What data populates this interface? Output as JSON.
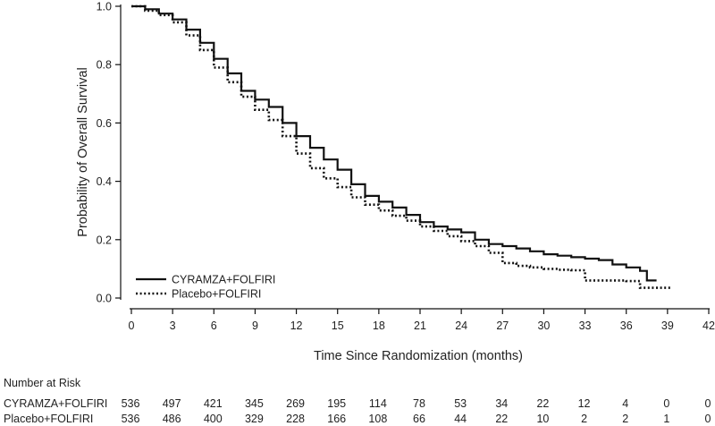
{
  "chart_data": {
    "type": "line",
    "title": "",
    "xlabel": "Time Since Randomization (months)",
    "ylabel": "Probability of Overall Survival",
    "xlim": [
      0,
      42
    ],
    "ylim": [
      0,
      1
    ],
    "xticks": [
      0,
      3,
      6,
      9,
      12,
      15,
      18,
      21,
      24,
      27,
      30,
      33,
      36,
      39,
      42
    ],
    "yticks": [
      0.0,
      0.2,
      0.4,
      0.6,
      0.8,
      1.0
    ],
    "ytick_labels": [
      "0.0",
      "0.2",
      "0.4",
      "0.6",
      "0.8",
      "1.0"
    ],
    "grid": false,
    "legend": {
      "position": "bottom-left"
    },
    "series": [
      {
        "name": "CYRAMZA+FOLFIRI",
        "line_style": "solid",
        "color": "#111111",
        "x": [
          0,
          1,
          2,
          3,
          4,
          5,
          6,
          7,
          8,
          9,
          10,
          11,
          12,
          13,
          14,
          15,
          16,
          17,
          18,
          19,
          20,
          21,
          22,
          23,
          24,
          25,
          26,
          27,
          28,
          29,
          30,
          31,
          32,
          33,
          34,
          35,
          36,
          37,
          37.5,
          38.2
        ],
        "y": [
          1.0,
          0.99,
          0.975,
          0.955,
          0.92,
          0.875,
          0.82,
          0.77,
          0.71,
          0.68,
          0.655,
          0.6,
          0.555,
          0.515,
          0.475,
          0.44,
          0.39,
          0.35,
          0.33,
          0.31,
          0.285,
          0.26,
          0.245,
          0.235,
          0.225,
          0.2,
          0.185,
          0.178,
          0.17,
          0.16,
          0.15,
          0.145,
          0.14,
          0.135,
          0.13,
          0.115,
          0.105,
          0.093,
          0.06,
          0.06
        ]
      },
      {
        "name": "Placebo+FOLFIRI",
        "line_style": "dotted",
        "color": "#111111",
        "x": [
          0,
          1,
          2,
          3,
          4,
          5,
          6,
          7,
          8,
          9,
          10,
          11,
          12,
          13,
          14,
          15,
          16,
          17,
          18,
          19,
          20,
          21,
          22,
          23,
          24,
          25,
          26,
          27,
          28,
          29,
          30,
          31,
          32,
          33,
          34,
          35,
          36,
          37,
          38,
          39.2
        ],
        "y": [
          1.0,
          0.985,
          0.97,
          0.945,
          0.9,
          0.85,
          0.79,
          0.74,
          0.69,
          0.645,
          0.61,
          0.555,
          0.495,
          0.445,
          0.41,
          0.38,
          0.345,
          0.32,
          0.3,
          0.282,
          0.265,
          0.245,
          0.23,
          0.212,
          0.195,
          0.178,
          0.155,
          0.12,
          0.11,
          0.105,
          0.1,
          0.097,
          0.095,
          0.06,
          0.06,
          0.06,
          0.058,
          0.035,
          0.035,
          0.035
        ]
      }
    ],
    "number_at_risk": {
      "heading": "Number at Risk",
      "timepoints": [
        0,
        3,
        6,
        9,
        12,
        15,
        18,
        21,
        24,
        27,
        30,
        33,
        36,
        39,
        42
      ],
      "rows": [
        {
          "label": "CYRAMZA+FOLFIRI",
          "values": [
            536,
            497,
            421,
            345,
            269,
            195,
            114,
            78,
            53,
            34,
            22,
            12,
            4,
            0,
            0
          ]
        },
        {
          "label": "Placebo+FOLFIRI",
          "values": [
            536,
            486,
            400,
            329,
            228,
            166,
            108,
            66,
            44,
            22,
            10,
            2,
            2,
            1,
            0
          ]
        }
      ]
    }
  }
}
